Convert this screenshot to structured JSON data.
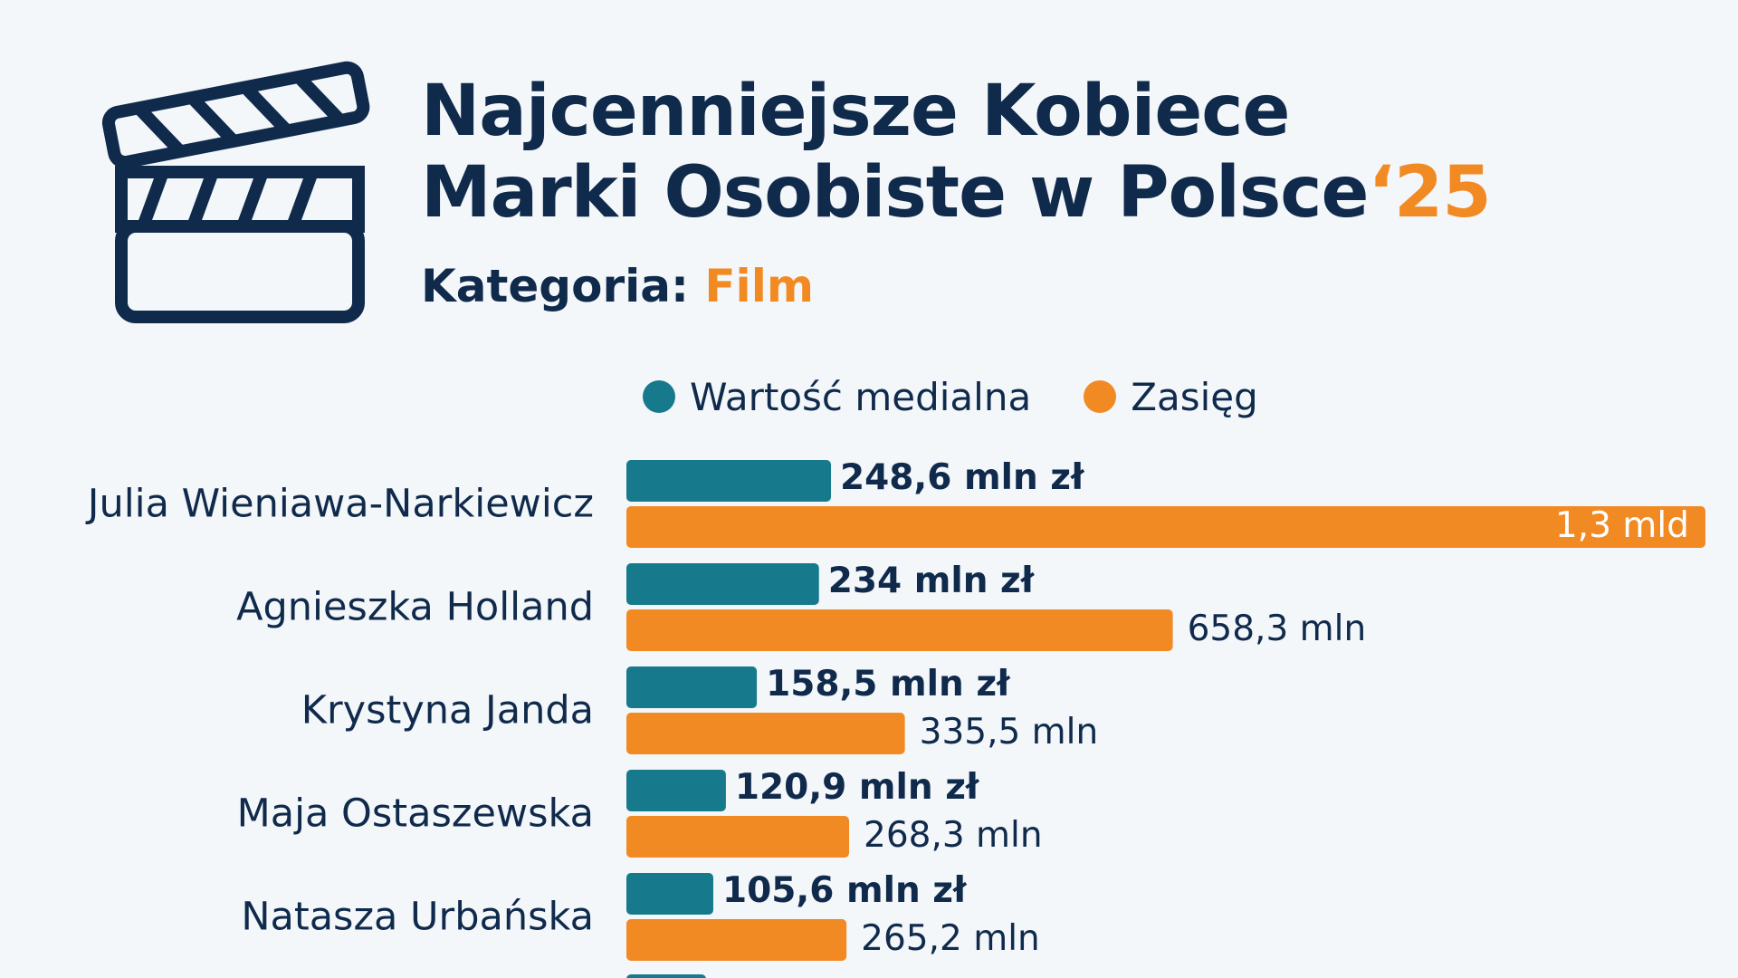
{
  "header": {
    "title_line1": "Najcenniejsze Kobiece",
    "title_line2": "Marki Osobiste w Polsce",
    "title_year": "‘25",
    "category_label": "Kategoria:",
    "category_value": "Film",
    "icon": "clapperboard-icon"
  },
  "colors": {
    "media_value": "#177a8c",
    "reach": "#f28a24",
    "text": "#102a4c",
    "background": "#f3f7fa"
  },
  "chart_data": {
    "type": "bar",
    "orientation": "horizontal",
    "categories": [
      "Julia Wieniawa-Narkiewicz",
      "Agnieszka Holland",
      "Krystyna Janda",
      "Maja Ostaszewska",
      "Natasza Urbańska"
    ],
    "series": [
      {
        "name": "Wartość medialna",
        "unit": "mln zł",
        "values": [
          248.6,
          234,
          158.5,
          120.9,
          105.6
        ],
        "labels": [
          "248,6 mln zł",
          "234 mln zł",
          "158,5 mln zł",
          "120,9 mln zł",
          "105,6 mln zł"
        ]
      },
      {
        "name": "Zasięg",
        "unit": "mln",
        "values": [
          1300,
          658.3,
          335.5,
          268.3,
          265.2
        ],
        "labels": [
          "1,3 mld",
          "658,3 mln",
          "335,5 mln",
          "268,3 mln",
          "265,2 mln"
        ]
      }
    ],
    "legend_position": "top",
    "grid": false
  }
}
